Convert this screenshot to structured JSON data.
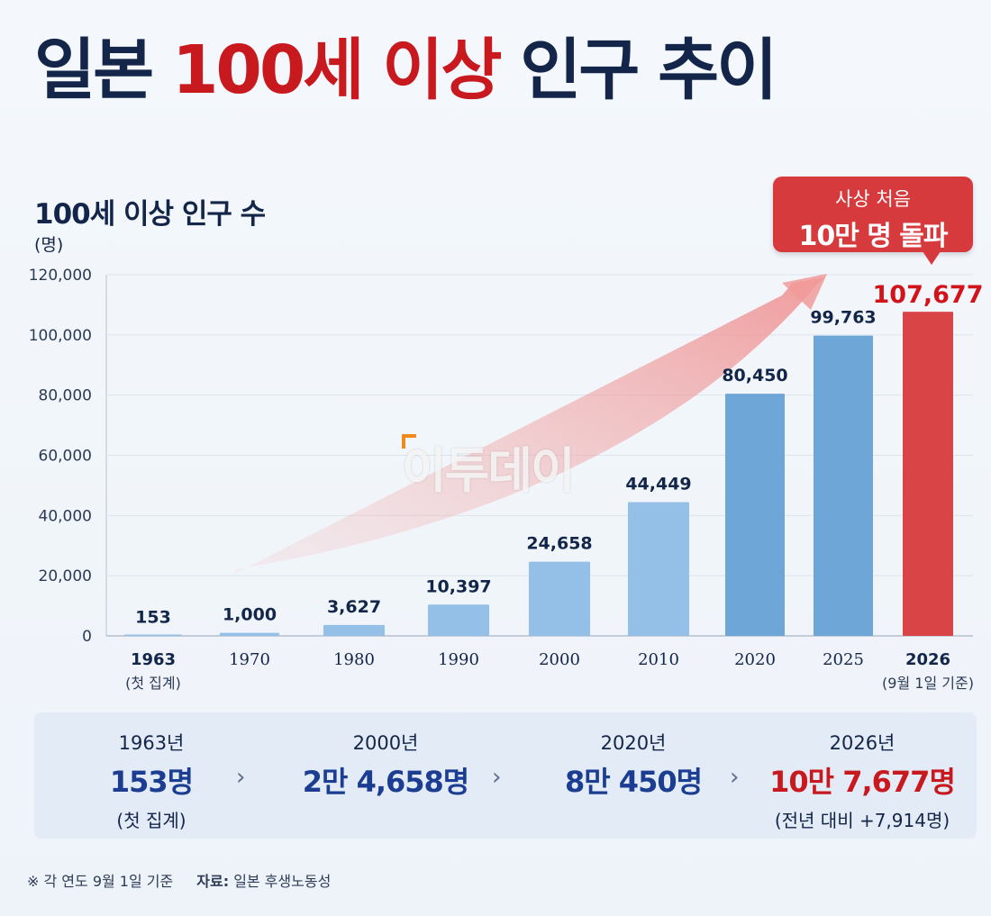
{
  "header": {
    "title_part1": "일본",
    "title_highlight": "100세 이상",
    "title_part2": "인구 추이"
  },
  "chart_data": {
    "type": "bar",
    "title": "100세 이상 인구 수",
    "ylabel": "(명)",
    "ylim": [
      0,
      120000
    ],
    "yticks": [
      0,
      20000,
      40000,
      60000,
      80000,
      100000,
      120000
    ],
    "ytick_labels": [
      "0",
      "20,000",
      "40,000",
      "60,000",
      "80,000",
      "100,000",
      "120,000"
    ],
    "grid": true,
    "categories": [
      "1963",
      "1970",
      "1980",
      "1990",
      "2000",
      "2010",
      "2020",
      "2025",
      "2026"
    ],
    "category_notes": [
      "(첫 집계)",
      "",
      "",
      "",
      "",
      "",
      "",
      "",
      "(9월 1일 기준)"
    ],
    "values": [
      153,
      1000,
      3627,
      10397,
      24658,
      44449,
      80450,
      99763,
      107677
    ],
    "value_labels": [
      "153",
      "1,000",
      "3,627",
      "10,397",
      "24,658",
      "44,449",
      "80,450",
      "99,763",
      "107,677"
    ],
    "highlight_index": 8
  },
  "colors": {
    "title_dark": "#13264a",
    "title_red": "#c8191f",
    "bar_light": "#94bfe6",
    "bar_mid": "#6fa6d8",
    "bar_highlight": "#d94446",
    "value_label": "#13264a",
    "value_label_highlight": "#d1131a"
  },
  "callout": {
    "line1": "사상 처음",
    "line2": "10만 명 돌파"
  },
  "watermark": "이투데이",
  "summary": {
    "items": [
      {
        "year": "1963년",
        "value": "153명",
        "note": "(첫 집계)"
      },
      {
        "year": "2000년",
        "value": "2만 4,658명",
        "note": ""
      },
      {
        "year": "2020년",
        "value": "8만 450명",
        "note": ""
      },
      {
        "year": "2026년",
        "value": "10만 7,677명",
        "note": "(전년 대비 +7,914명)"
      }
    ],
    "separator": "›"
  },
  "footer": {
    "note": "※ 각 연도 9월 1일 기준",
    "source_label": "자료:",
    "source_text": "일본 후생노동성"
  }
}
